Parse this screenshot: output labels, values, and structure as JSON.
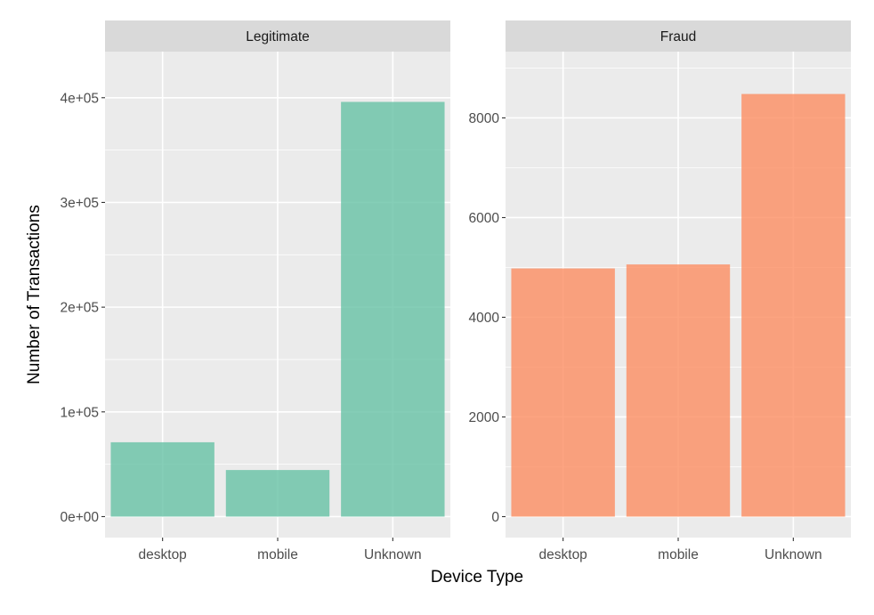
{
  "chart_data": {
    "type": "bar",
    "facet_by": "class",
    "xlabel": "Device Type",
    "ylabel": "Number of Transactions",
    "categories": [
      "desktop",
      "mobile",
      "Unknown"
    ],
    "facets": [
      {
        "title": "Legitimate",
        "values": [
          71000,
          44500,
          396000
        ],
        "ylim": [
          -20000,
          444000
        ],
        "yticks": [
          0,
          100000,
          200000,
          300000,
          400000
        ],
        "ytick_labels": [
          "0e+00",
          "1e+05",
          "2e+05",
          "3e+05",
          "4e+05"
        ],
        "color": "#66c2a5"
      },
      {
        "title": "Fraud",
        "values": [
          4980,
          5060,
          8480
        ],
        "ylim": [
          -420,
          9330
        ],
        "yticks": [
          0,
          2000,
          4000,
          6000,
          8000
        ],
        "ytick_labels": [
          "0",
          "2000",
          "4000",
          "6000",
          "8000"
        ],
        "color": "#fc8d62"
      }
    ],
    "grid": true,
    "legend": "none"
  },
  "colors": {
    "panel_background": "#ebebeb",
    "strip_background": "#d9d9d9",
    "gridline": "#ffffff"
  }
}
